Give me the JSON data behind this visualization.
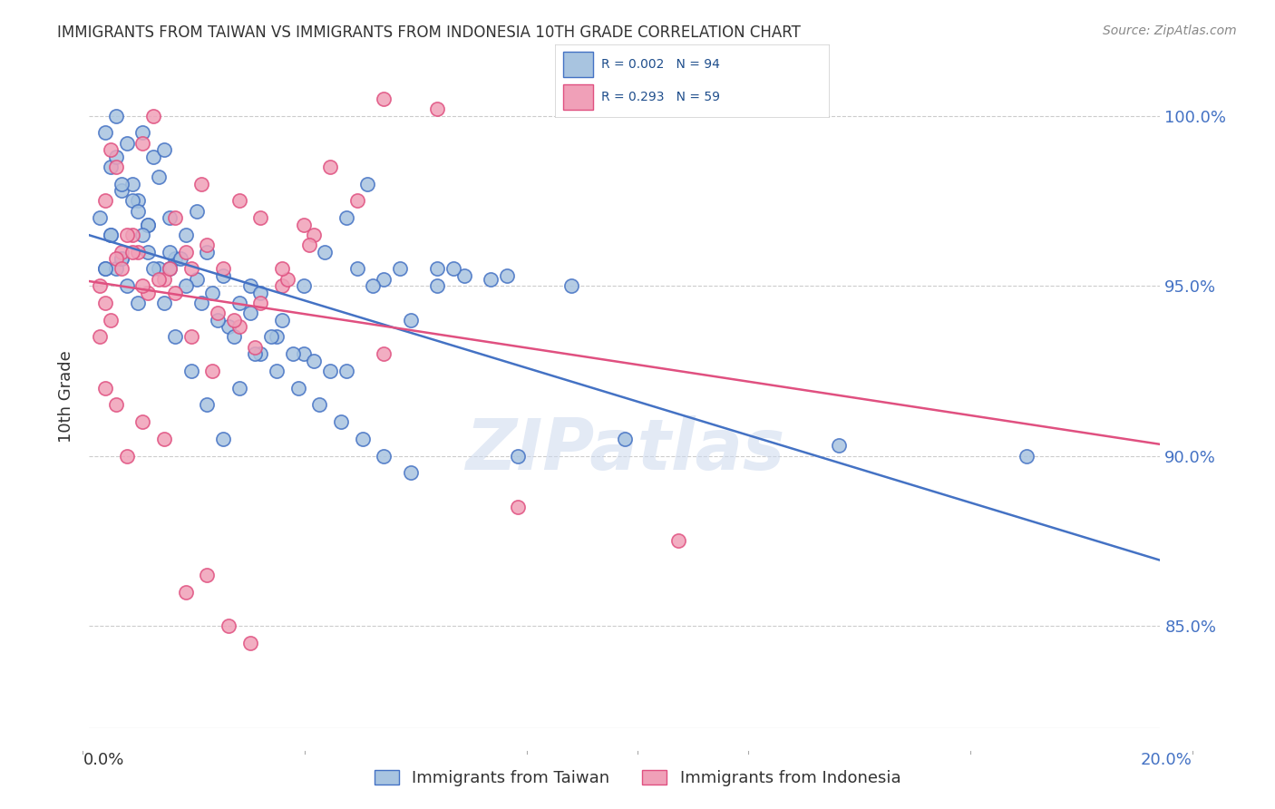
{
  "title": "IMMIGRANTS FROM TAIWAN VS IMMIGRANTS FROM INDONESIA 10TH GRADE CORRELATION CHART",
  "source": "Source: ZipAtlas.com",
  "ylabel": "10th Grade",
  "xmin": 0.0,
  "xmax": 20.0,
  "ymin": 82.0,
  "ymax": 101.5,
  "yticks": [
    85.0,
    90.0,
    95.0,
    100.0
  ],
  "ytick_labels": [
    "85.0%",
    "90.0%",
    "95.0%",
    "100.0%"
  ],
  "legend_label_taiwan": "Immigrants from Taiwan",
  "legend_label_indonesia": "Immigrants from Indonesia",
  "color_taiwan": "#a8c4e0",
  "color_taiwan_line": "#4472c4",
  "color_indonesia": "#f0a0b8",
  "color_indonesia_line": "#e05080",
  "color_legend_text": "#1f4e8c",
  "watermark_text": "ZIPatlas",
  "taiwan_x": [
    0.3,
    0.5,
    0.4,
    0.7,
    0.6,
    0.8,
    1.0,
    1.2,
    0.9,
    1.1,
    1.3,
    1.5,
    1.4,
    1.8,
    2.0,
    1.6,
    2.2,
    2.5,
    2.8,
    3.0,
    3.2,
    3.5,
    4.0,
    4.5,
    5.0,
    5.5,
    6.0,
    7.0,
    8.0,
    10.0,
    0.2,
    0.4,
    0.6,
    0.5,
    0.7,
    0.9,
    1.1,
    1.3,
    1.5,
    1.7,
    2.0,
    2.3,
    2.6,
    3.0,
    3.4,
    3.8,
    4.2,
    4.8,
    5.3,
    6.5,
    0.3,
    0.5,
    0.8,
    1.0,
    1.2,
    1.4,
    1.6,
    1.9,
    2.2,
    2.5,
    2.8,
    3.2,
    3.6,
    4.0,
    4.4,
    4.8,
    5.2,
    5.8,
    6.5,
    7.5,
    0.4,
    0.6,
    0.9,
    1.1,
    1.5,
    1.8,
    2.1,
    2.4,
    2.7,
    3.1,
    3.5,
    3.9,
    4.3,
    4.7,
    5.1,
    5.5,
    6.0,
    6.8,
    7.8,
    9.0,
    14.0,
    17.5,
    0.3,
    0.6
  ],
  "taiwan_y": [
    95.5,
    100.0,
    98.5,
    99.2,
    97.8,
    98.0,
    99.5,
    98.8,
    97.5,
    96.8,
    98.2,
    97.0,
    99.0,
    96.5,
    97.2,
    95.8,
    96.0,
    95.3,
    94.5,
    95.0,
    94.8,
    93.5,
    93.0,
    92.5,
    95.5,
    95.2,
    94.0,
    95.3,
    90.0,
    90.5,
    97.0,
    96.5,
    98.0,
    95.5,
    95.0,
    94.5,
    96.8,
    95.5,
    96.0,
    95.8,
    95.2,
    94.8,
    93.8,
    94.2,
    93.5,
    93.0,
    92.8,
    92.5,
    95.0,
    95.5,
    99.5,
    98.8,
    97.5,
    96.5,
    95.5,
    94.5,
    93.5,
    92.5,
    91.5,
    90.5,
    92.0,
    93.0,
    94.0,
    95.0,
    96.0,
    97.0,
    98.0,
    95.5,
    95.0,
    95.2,
    96.5,
    95.8,
    97.2,
    96.0,
    95.5,
    95.0,
    94.5,
    94.0,
    93.5,
    93.0,
    92.5,
    92.0,
    91.5,
    91.0,
    90.5,
    90.0,
    89.5,
    95.5,
    95.3,
    95.0,
    90.3,
    90.0,
    95.5,
    95.8
  ],
  "indonesia_x": [
    0.2,
    0.3,
    0.4,
    0.5,
    0.6,
    0.8,
    1.0,
    1.2,
    1.4,
    1.6,
    1.9,
    2.2,
    2.5,
    2.8,
    3.2,
    3.6,
    4.0,
    4.5,
    5.5,
    6.5,
    0.3,
    0.5,
    0.7,
    0.9,
    1.1,
    1.5,
    1.8,
    2.1,
    2.4,
    2.8,
    3.2,
    3.7,
    4.2,
    5.0,
    0.2,
    0.4,
    0.6,
    0.8,
    1.0,
    1.3,
    1.6,
    1.9,
    2.3,
    2.7,
    3.1,
    3.6,
    4.1,
    5.5,
    8.0,
    11.0,
    0.3,
    0.5,
    0.7,
    1.0,
    1.4,
    1.8,
    2.2,
    2.6,
    3.0
  ],
  "indonesia_y": [
    95.0,
    97.5,
    99.0,
    98.5,
    96.0,
    96.5,
    99.2,
    100.0,
    95.2,
    97.0,
    95.5,
    96.2,
    95.5,
    97.5,
    97.0,
    95.0,
    96.8,
    98.5,
    100.5,
    100.2,
    94.5,
    95.8,
    96.5,
    96.0,
    94.8,
    95.5,
    96.0,
    98.0,
    94.2,
    93.8,
    94.5,
    95.2,
    96.5,
    97.5,
    93.5,
    94.0,
    95.5,
    96.0,
    95.0,
    95.2,
    94.8,
    93.5,
    92.5,
    94.0,
    93.2,
    95.5,
    96.2,
    93.0,
    88.5,
    87.5,
    92.0,
    91.5,
    90.0,
    91.0,
    90.5,
    86.0,
    86.5,
    85.0,
    84.5
  ]
}
